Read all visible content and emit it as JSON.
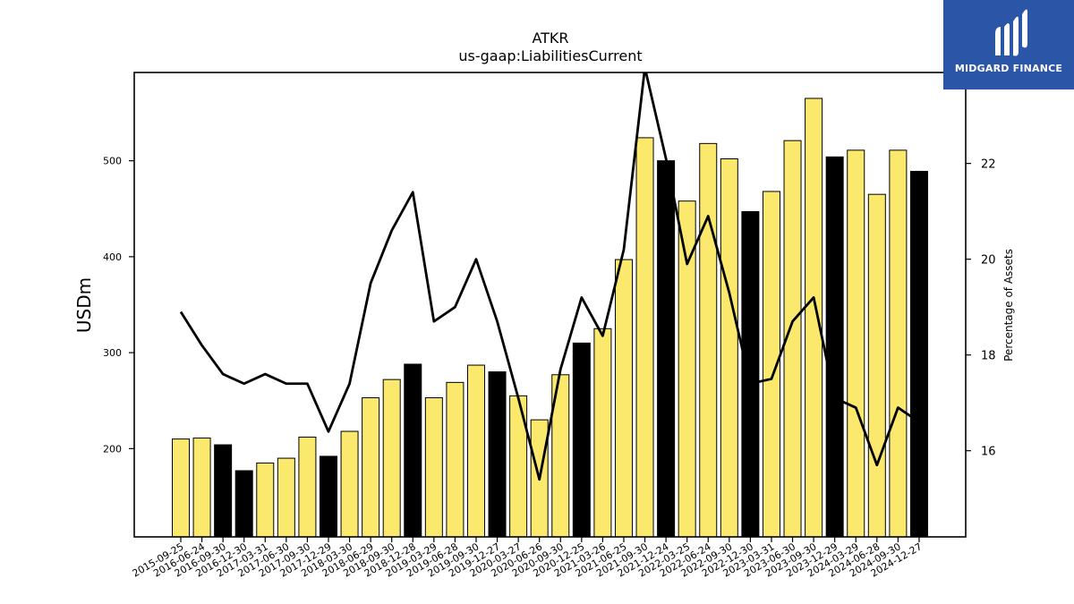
{
  "logo": {
    "text": "MIDGARD FINANCE"
  },
  "chart_data": {
    "type": "bar",
    "title": "ATKR",
    "subtitle": "us-gaap:LiabilitiesCurrent",
    "ylabel": "USDm",
    "y2label": "Percentage of Assets",
    "ylim": [
      108,
      592
    ],
    "y2lim": [
      14.2,
      23.9
    ],
    "yticks": [
      200,
      300,
      400,
      500
    ],
    "y2ticks": [
      16,
      18,
      20,
      22
    ],
    "colors": {
      "quarter": "#fbe96e",
      "year_end": "#000000",
      "line": "#000000"
    },
    "categories": [
      "2015-09-25",
      "2016-06-24",
      "2016-09-30",
      "2016-12-30",
      "2017-03-31",
      "2017-06-30",
      "2017-09-30",
      "2017-12-29",
      "2018-03-30",
      "2018-06-29",
      "2018-09-30",
      "2018-12-28",
      "2019-03-29",
      "2019-06-28",
      "2019-09-30",
      "2019-12-27",
      "2020-03-27",
      "2020-06-26",
      "2020-09-30",
      "2020-12-25",
      "2021-03-26",
      "2021-06-25",
      "2021-09-30",
      "2021-12-24",
      "2022-03-25",
      "2022-06-24",
      "2022-09-30",
      "2022-12-30",
      "2023-03-31",
      "2023-06-30",
      "2023-09-30",
      "2023-12-29",
      "2024-03-29",
      "2024-06-28",
      "2024-09-30",
      "2024-12-27"
    ],
    "series": [
      {
        "kind": "bar",
        "values": [
          210,
          211,
          204,
          177,
          185,
          190,
          212,
          192,
          218,
          253,
          272,
          288,
          253,
          269,
          287,
          280,
          255,
          230,
          277,
          310,
          325,
          397,
          524,
          500,
          458,
          518,
          502,
          447,
          468,
          521,
          565,
          504,
          511,
          465,
          511,
          489
        ],
        "year_end": [
          false,
          false,
          true,
          true,
          false,
          false,
          false,
          true,
          false,
          false,
          false,
          true,
          false,
          false,
          false,
          true,
          false,
          false,
          false,
          true,
          false,
          false,
          false,
          true,
          false,
          false,
          false,
          true,
          false,
          false,
          false,
          true,
          false,
          false,
          false,
          true
        ]
      },
      {
        "kind": "line",
        "axis": "right",
        "values": [
          18.9,
          18.2,
          17.6,
          17.4,
          17.6,
          17.4,
          17.4,
          16.4,
          17.4,
          19.5,
          20.6,
          21.4,
          18.7,
          19.0,
          20.0,
          18.7,
          17.1,
          15.4,
          17.7,
          19.2,
          18.4,
          20.2,
          24.0,
          22.1,
          19.9,
          20.9,
          19.3,
          17.4,
          17.5,
          18.7,
          19.2,
          17.1,
          16.9,
          15.7,
          16.9,
          16.6
        ]
      }
    ]
  }
}
